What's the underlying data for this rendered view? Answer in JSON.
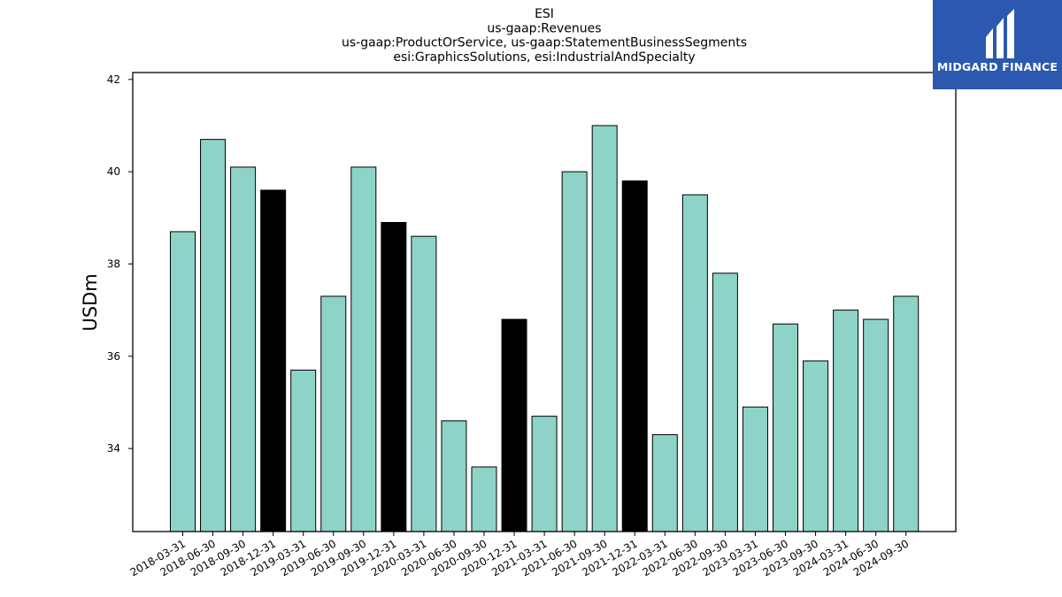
{
  "chart_data": {
    "type": "bar",
    "title_lines": [
      "ESI",
      "us-gaap:Revenues",
      "us-gaap:ProductOrService, us-gaap:StatementBusinessSegments",
      "esi:GraphicsSolutions, esi:IndustrialAndSpecialty"
    ],
    "ylabel": "USDm",
    "xlabel": "",
    "ylim": [
      32.2,
      42.15
    ],
    "yticks": [
      34,
      36,
      38,
      40,
      42
    ],
    "categories": [
      "2018-03-31",
      "2018-06-30",
      "2018-09-30",
      "2018-12-31",
      "2019-03-31",
      "2019-06-30",
      "2019-09-30",
      "2019-12-31",
      "2020-03-31",
      "2020-06-30",
      "2020-09-30",
      "2020-12-31",
      "2021-03-31",
      "2021-06-30",
      "2021-09-30",
      "2021-12-31",
      "2022-03-31",
      "2022-06-30",
      "2022-09-30",
      "2023-03-31",
      "2023-06-30",
      "2023-09-30",
      "2024-03-31",
      "2024-06-30",
      "2024-09-30"
    ],
    "values": [
      38.7,
      40.7,
      40.1,
      39.6,
      35.7,
      37.3,
      40.1,
      38.9,
      38.6,
      34.6,
      33.6,
      36.8,
      34.7,
      40.0,
      41.0,
      39.8,
      34.3,
      39.5,
      37.8,
      34.9,
      36.7,
      35.9,
      37.0,
      36.8,
      37.3
    ],
    "highlight": [
      false,
      false,
      false,
      true,
      false,
      false,
      false,
      true,
      false,
      false,
      false,
      true,
      false,
      false,
      false,
      true,
      false,
      false,
      false,
      false,
      false,
      false,
      false,
      false,
      false
    ],
    "colors": {
      "bar": "#8dd3c7",
      "highlight": "#000000",
      "edge": "#000000"
    },
    "grid": false
  },
  "logo": {
    "text": "MIDGARD FINANCE",
    "background": "#2b59b0",
    "color": "#ffffff"
  }
}
